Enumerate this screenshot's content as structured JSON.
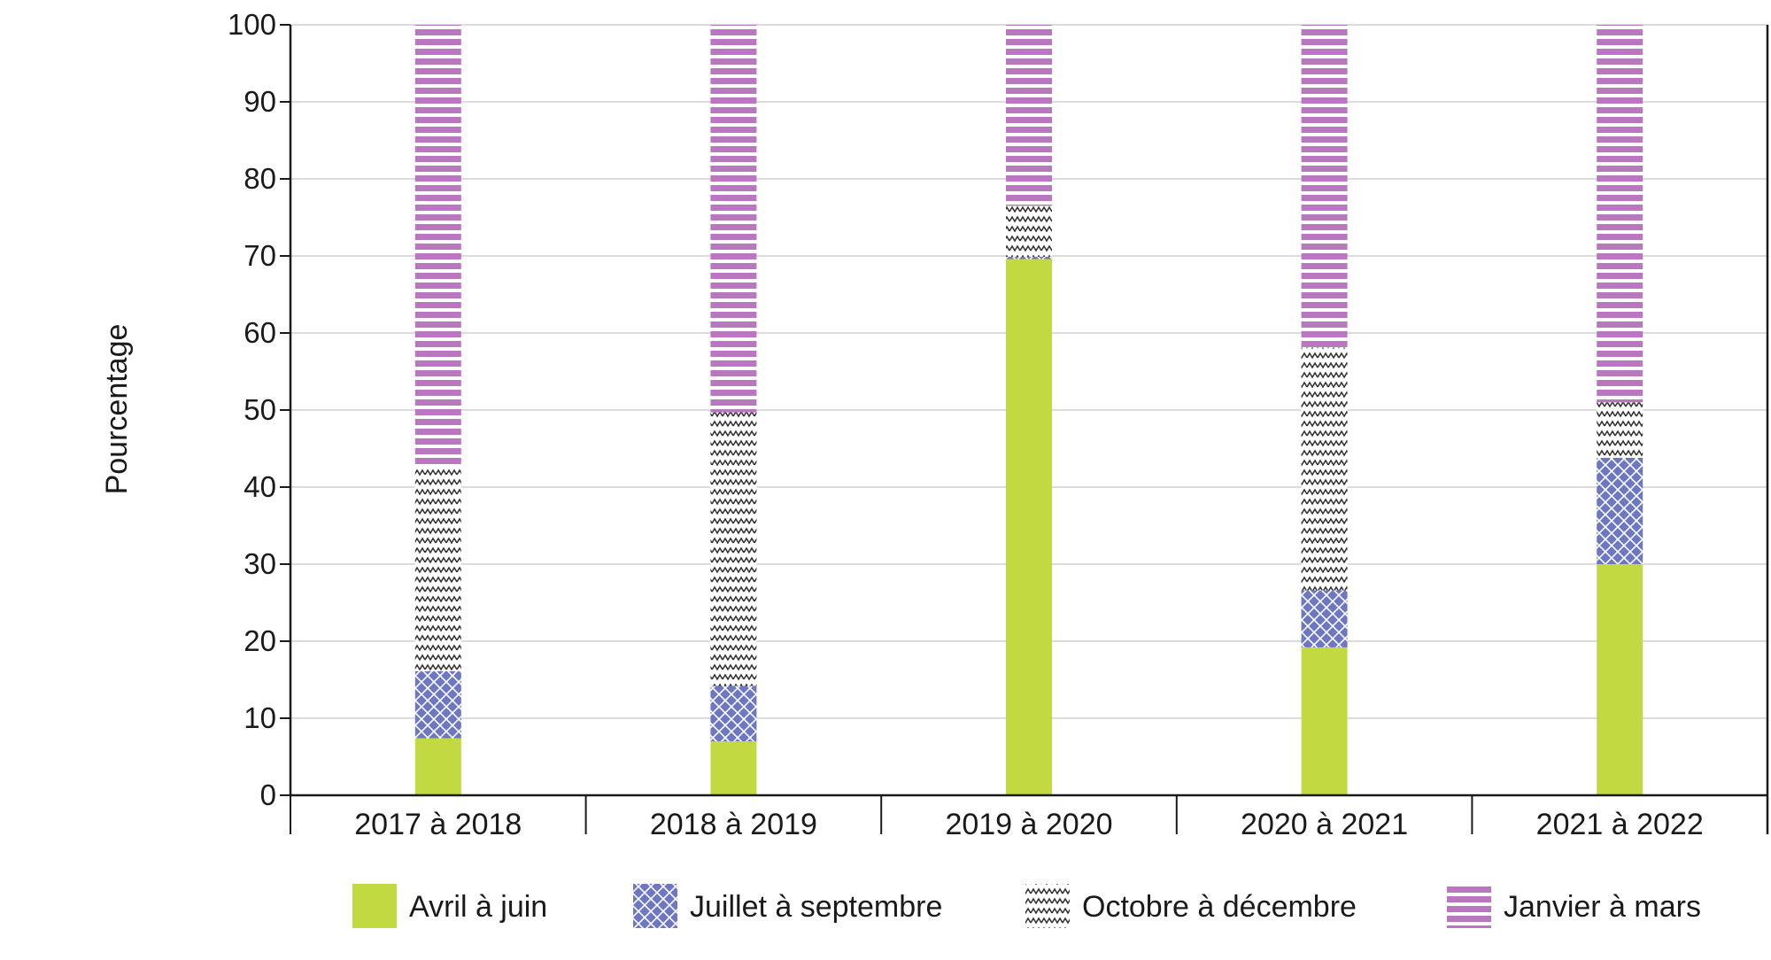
{
  "chart_data": {
    "type": "bar",
    "stacked": true,
    "ylabel": "Pourcentage",
    "xlabel": "",
    "ylim": [
      0,
      100
    ],
    "yticks": [
      0,
      10,
      20,
      30,
      40,
      50,
      60,
      70,
      80,
      90,
      100
    ],
    "grid": true,
    "legend_position": "bottom",
    "categories": [
      "2017 à 2018",
      "2018 à 2019",
      "2019 à 2020",
      "2020 à 2021",
      "2021 à 2022"
    ],
    "series": [
      {
        "name": "Avril à juin",
        "color": "#c3d942",
        "pattern": "solid",
        "values": [
          7.4,
          7.0,
          69.6,
          19.2,
          30.0
        ]
      },
      {
        "name": "Juillet à septembre",
        "color": "#6d77c2",
        "pattern": "crosshatch",
        "values": [
          8.7,
          7.2,
          0.3,
          7.4,
          13.8
        ]
      },
      {
        "name": "Octobre à décembre",
        "color": "#333333",
        "pattern": "zigzag",
        "values": [
          26.5,
          35.5,
          6.6,
          31.5,
          7.2
        ]
      },
      {
        "name": "Janvier à mars",
        "color": "#b877be",
        "pattern": "stripes",
        "values": [
          57.4,
          50.3,
          23.5,
          41.9,
          49.0
        ]
      }
    ]
  }
}
